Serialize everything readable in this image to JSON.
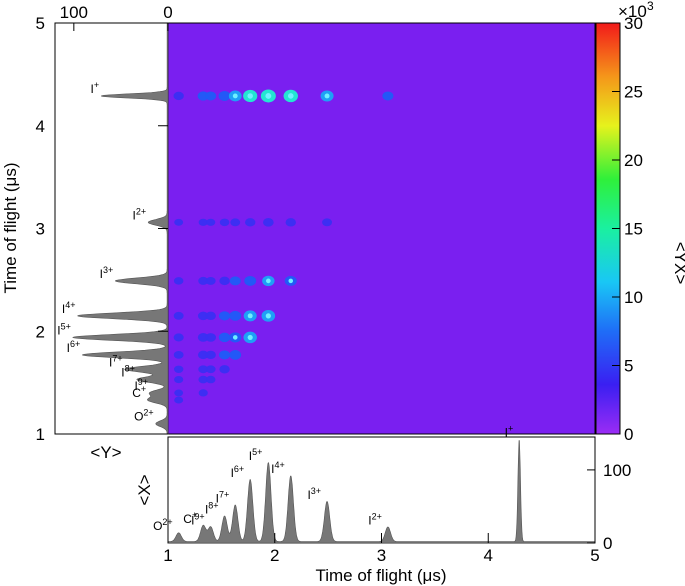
{
  "chart_data": {
    "type": "heatmap",
    "title": "",
    "xlabel": "Time of flight (μs)",
    "ylabel": "Time of flight (μs)",
    "xlim": [
      1,
      5
    ],
    "ylim": [
      1,
      5
    ],
    "xticks": [
      "1",
      "2",
      "3",
      "4",
      "5"
    ],
    "yticks": [
      "1",
      "2",
      "3",
      "4",
      "5"
    ],
    "colorbar": {
      "label": "<YX>",
      "multiplier": "×10",
      "multiplier_exp": "3",
      "range": [
        0,
        30
      ],
      "ticks": [
        "0",
        "5",
        "10",
        "15",
        "20",
        "25",
        "30"
      ],
      "background_color": "#7a1ff0"
    },
    "peaks": [
      {
        "label": "O",
        "charge": "2+",
        "tof": 1.1,
        "xproj": 12,
        "yproj": 12
      },
      {
        "label": "C",
        "charge": "+",
        "tof": 1.33,
        "xproj": 22,
        "yproj": 20
      },
      {
        "label": "I",
        "charge": "9+",
        "tof": 1.4,
        "xproj": 20,
        "yproj": 18
      },
      {
        "label": "I",
        "charge": "8+",
        "tof": 1.53,
        "xproj": 35,
        "yproj": 32
      },
      {
        "label": "I",
        "charge": "7+",
        "tof": 1.63,
        "xproj": 50,
        "yproj": 45
      },
      {
        "label": "I",
        "charge": "6+",
        "tof": 1.77,
        "xproj": 85,
        "yproj": 90
      },
      {
        "label": "I",
        "charge": "5+",
        "tof": 1.94,
        "xproj": 108,
        "yproj": 100
      },
      {
        "label": "I",
        "charge": "4+",
        "tof": 2.15,
        "xproj": 90,
        "yproj": 95
      },
      {
        "label": "I",
        "charge": "3+",
        "tof": 2.49,
        "xproj": 55,
        "yproj": 55
      },
      {
        "label": "I",
        "charge": "2+",
        "tof": 3.06,
        "xproj": 20,
        "yproj": 20
      },
      {
        "label": "I",
        "charge": "+",
        "tof": 4.29,
        "xproj": 140,
        "yproj": 70
      }
    ],
    "x_projection": {
      "label": "<X>",
      "ylim": [
        0,
        145
      ],
      "ticks": [
        "0",
        "100"
      ]
    },
    "y_projection": {
      "label": "<Y>",
      "xlim": [
        0,
        120
      ],
      "ticks": [
        "0",
        "100"
      ]
    }
  }
}
